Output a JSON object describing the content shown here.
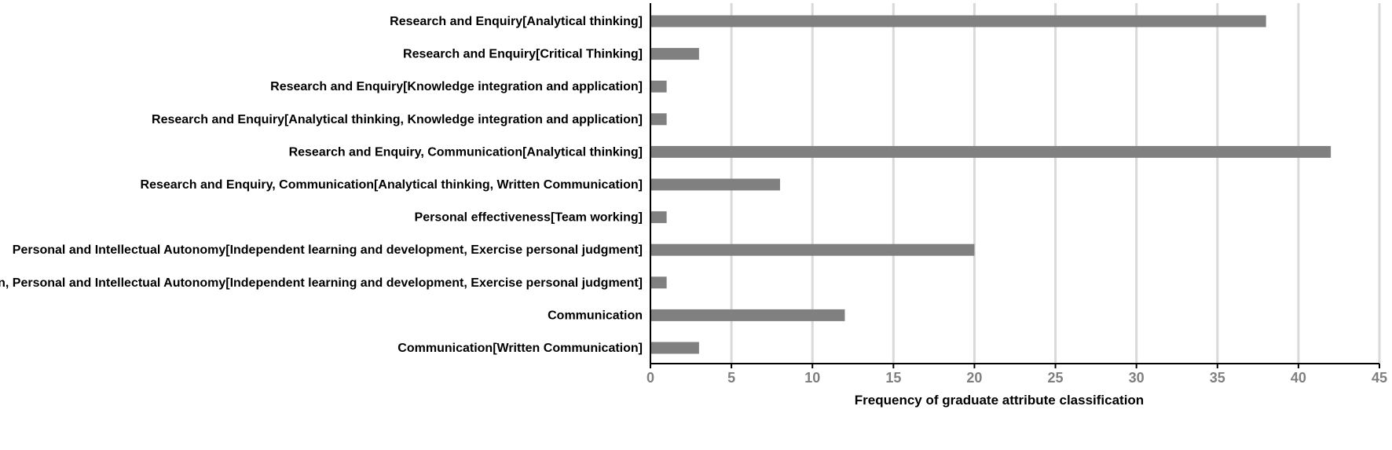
{
  "chart_data": {
    "type": "bar",
    "orientation": "horizontal",
    "categories": [
      "Research and Enquiry[Analytical thinking]",
      "Research and Enquiry[Critical Thinking]",
      "Research and Enquiry[Knowledge integration and application]",
      "Research and Enquiry[Analytical thinking, Knowledge integration and application]",
      "Research and Enquiry, Communication[Analytical thinking]",
      "Research and Enquiry, Communication[Analytical thinking, Written Communication]",
      "Personal effectiveness[Team working]",
      "Personal and Intellectual Autonomy[Independent learning and development, Exercise personal judgment]",
      "Communication, Personal and Intellectual Autonomy[Independent learning and development, Exercise personal judgment]",
      "Communication",
      "Communication[Written Communication]"
    ],
    "values": [
      38,
      3,
      1,
      1,
      42,
      8,
      1,
      20,
      1,
      12,
      3
    ],
    "xlabel": "Frequency of graduate attribute classification",
    "ylabel": "",
    "xlim": [
      0,
      45
    ],
    "xticks": [
      0,
      5,
      10,
      15,
      20,
      25,
      30,
      35,
      40,
      45
    ],
    "grid": "vertical",
    "legend": "none",
    "colors": {
      "bar": "#808080",
      "grid": "#d9d9d9",
      "axis": "#000000",
      "tick_text": "#7f7f7f"
    }
  }
}
